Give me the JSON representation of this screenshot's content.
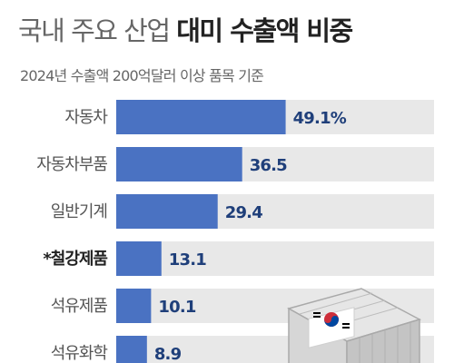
{
  "header": {
    "title_light": "국내 주요 산업",
    "title_bold": "대미 수출액 비중",
    "subtitle": "2024년 수출액 200억달러 이상 품목 기준"
  },
  "chart_data": {
    "type": "bar",
    "orientation": "horizontal",
    "title": "국내 주요 산업 대미 수출액 비중",
    "subtitle": "2024년 수출액 200억달러 이상 품목 기준",
    "categories": [
      "자동차",
      "자동차부품",
      "일반기계",
      "*철강제품",
      "석유제품",
      "석유화학"
    ],
    "values": [
      49.1,
      36.5,
      29.4,
      13.1,
      10.1,
      8.9
    ],
    "value_labels": [
      "49.1%",
      "36.5",
      "29.4",
      "13.1",
      "10.1",
      "8.9"
    ],
    "highlight_category": "*철강제품",
    "xlim": [
      0,
      100
    ],
    "grid": false,
    "colors": {
      "bar": "#4a72c2",
      "track": "#e8e8e8",
      "value_text": "#1f3f7a"
    }
  }
}
